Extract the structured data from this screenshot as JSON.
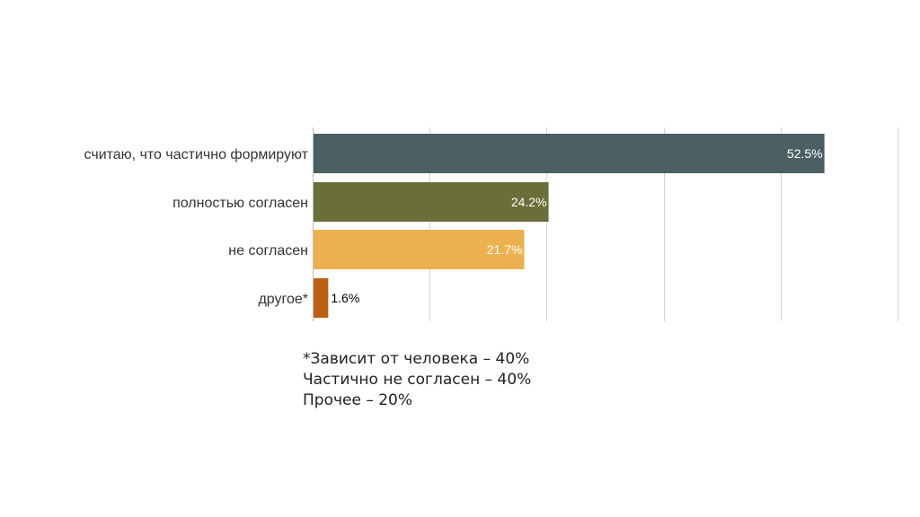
{
  "chart_data": {
    "type": "bar",
    "orientation": "horizontal",
    "categories": [
      "считаю, что частично формируют",
      "полностью согласен",
      "не согласен",
      "другое*"
    ],
    "values": [
      52.5,
      24.2,
      21.7,
      1.6
    ],
    "data_labels": [
      "52.5%",
      "24.2%",
      "21.7%",
      "1.6%"
    ],
    "colors": [
      "#4a5f62",
      "#6b6e38",
      "#ecb14e",
      "#bd5f12"
    ],
    "data_label_colors": [
      "#ffffff",
      "#ffffff",
      "#ffffff",
      "#000000"
    ],
    "xlim": [
      0,
      60
    ],
    "grid": true,
    "legend": "none",
    "title": "",
    "xlabel": "",
    "ylabel": ""
  },
  "footnote": {
    "lines": [
      "*Зависит от человека – 40%",
      "Частично не согласен – 40%",
      "Прочее – 20%"
    ]
  }
}
